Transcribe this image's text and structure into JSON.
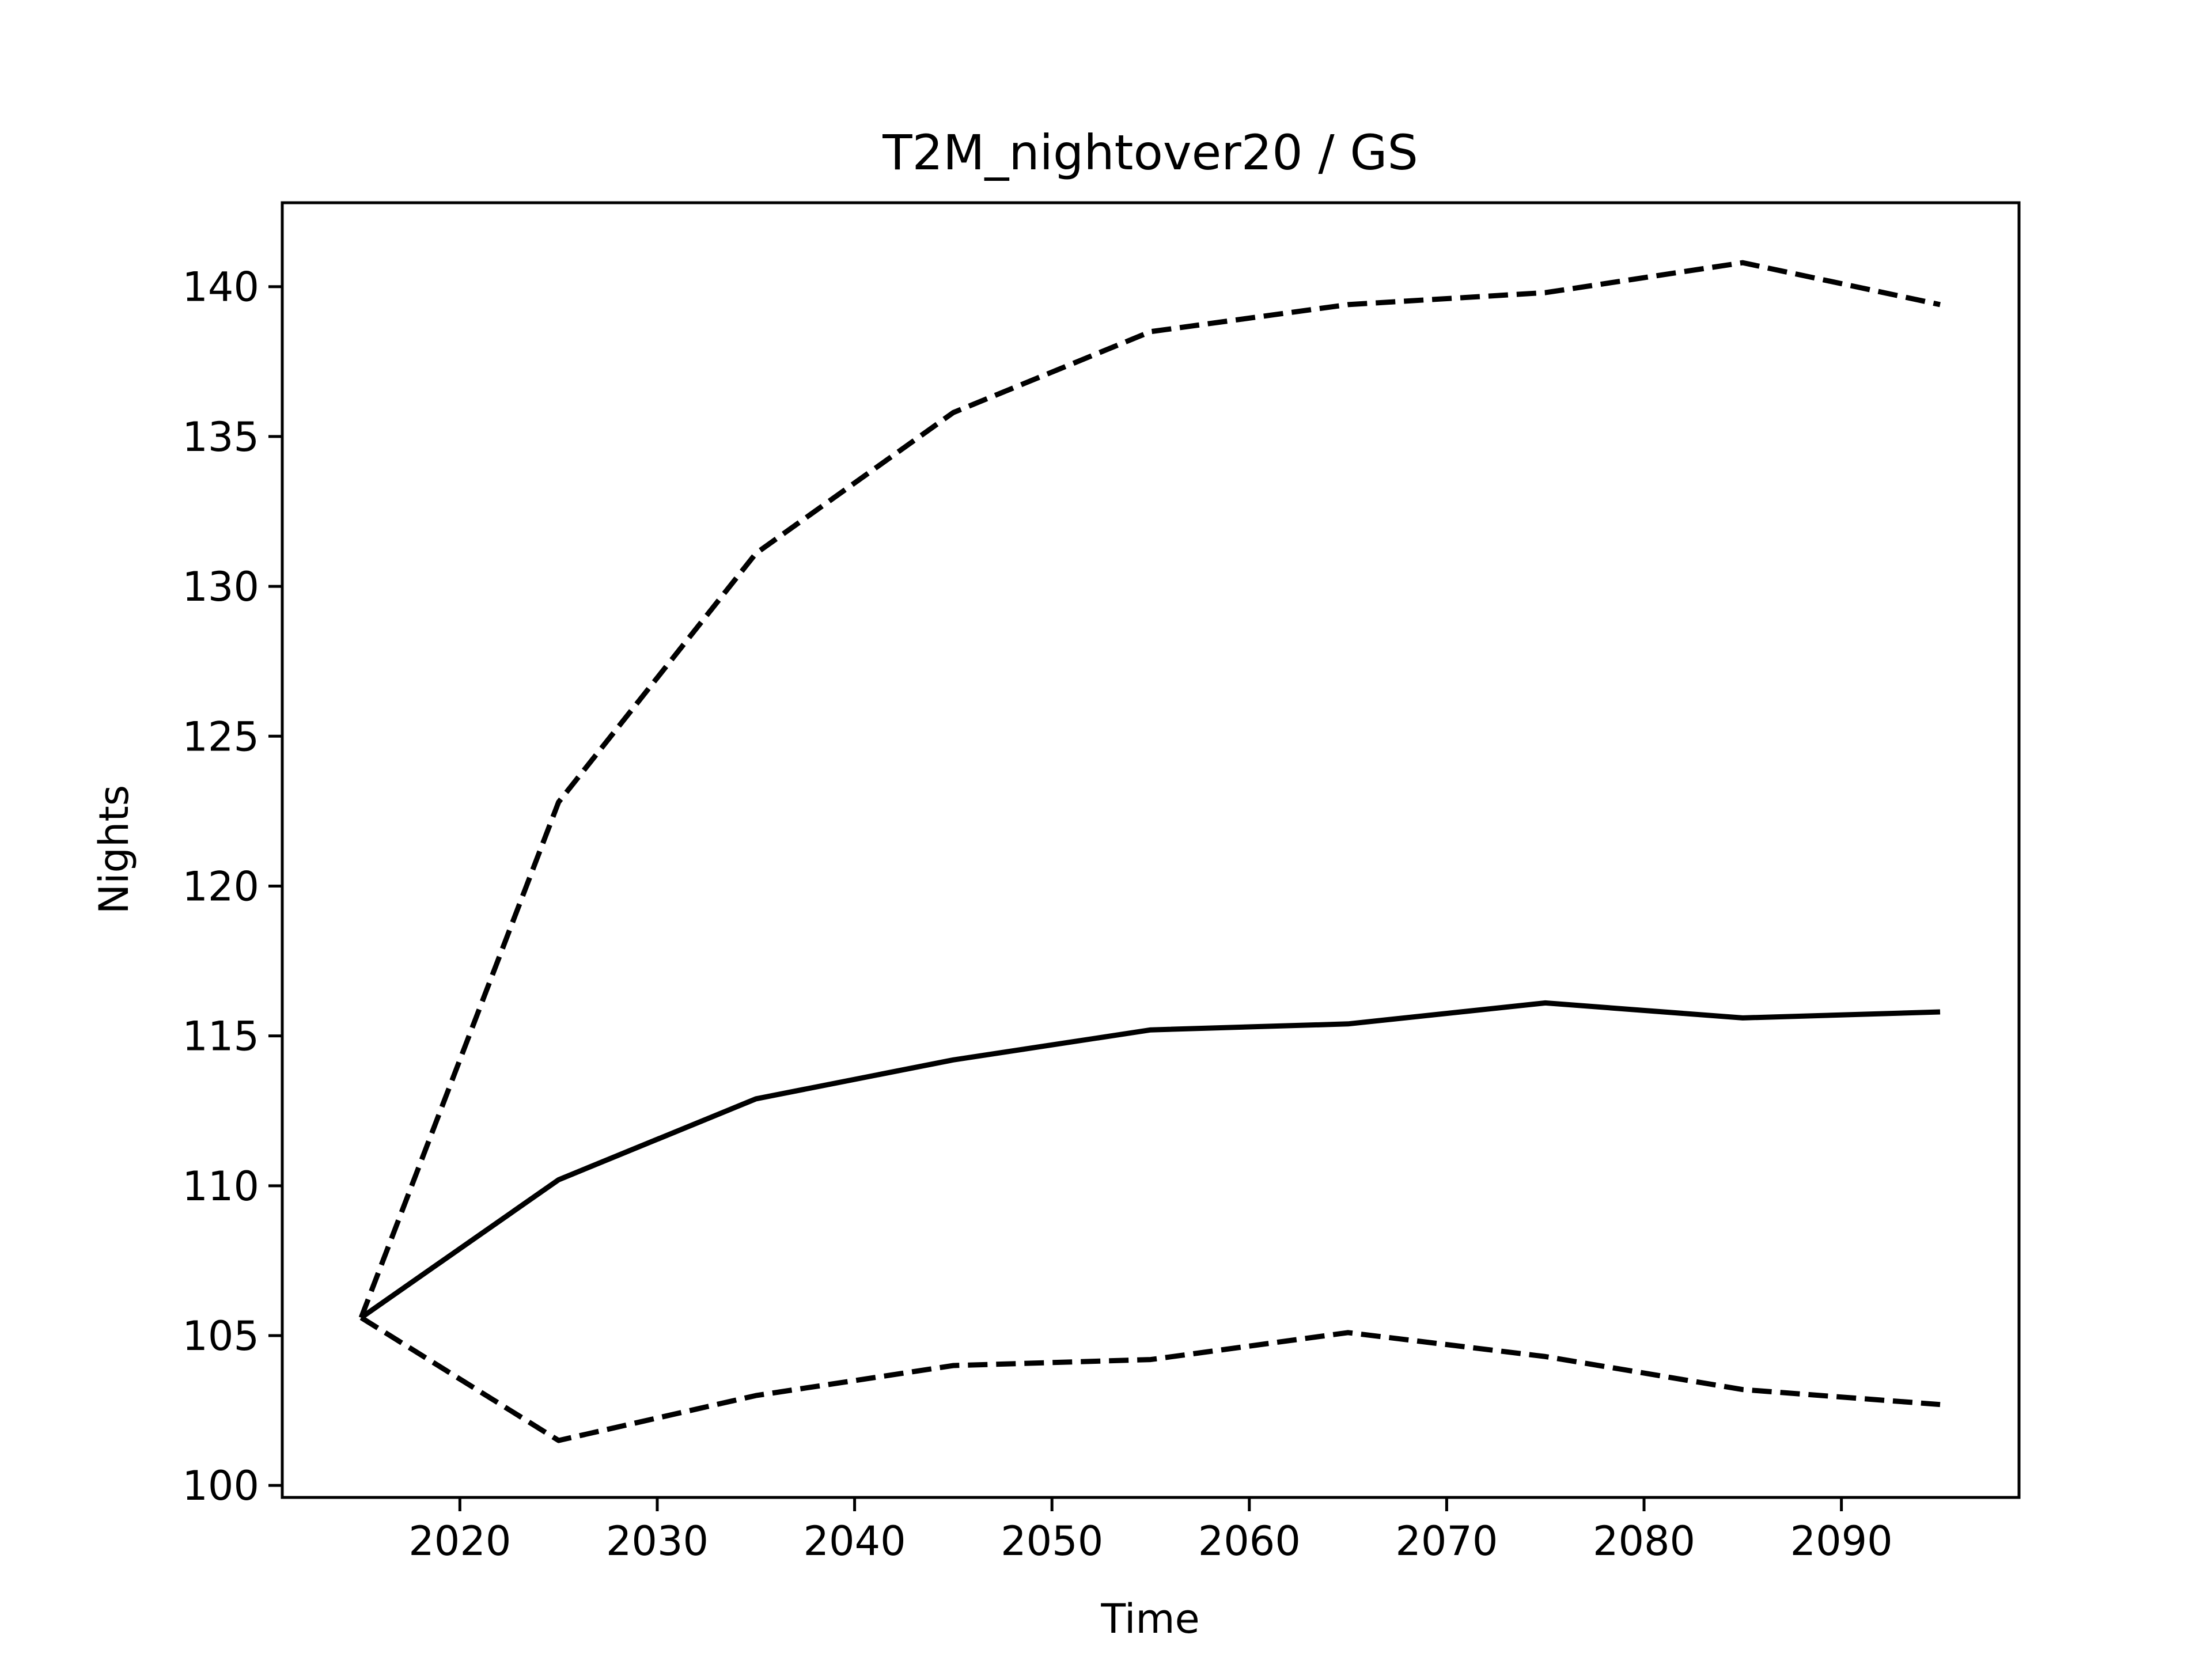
{
  "chart_data": {
    "type": "line",
    "title": "T2M_nightover20 / GS",
    "xlabel": "Time",
    "ylabel": "Nights",
    "xlim": [
      2011,
      2099
    ],
    "ylim": [
      99.6,
      142.8
    ],
    "x_ticks": [
      2020,
      2030,
      2040,
      2050,
      2060,
      2070,
      2080,
      2090
    ],
    "y_ticks": [
      100,
      105,
      110,
      115,
      120,
      125,
      130,
      135,
      140
    ],
    "grid": false,
    "x": [
      2015,
      2025,
      2035,
      2045,
      2055,
      2065,
      2075,
      2085,
      2095
    ],
    "series": [
      {
        "style": "solid",
        "color": "#000000",
        "values": [
          105.6,
          110.2,
          112.9,
          114.2,
          115.2,
          115.4,
          116.1,
          115.6,
          115.8
        ]
      },
      {
        "style": "dashed",
        "color": "#000000",
        "values": [
          105.6,
          122.8,
          131.1,
          135.8,
          138.5,
          139.4,
          139.8,
          140.8,
          139.4
        ]
      },
      {
        "style": "dashed",
        "color": "#000000",
        "values": [
          105.6,
          101.5,
          103.0,
          104.0,
          104.2,
          105.1,
          104.3,
          103.2,
          102.7
        ]
      }
    ]
  }
}
